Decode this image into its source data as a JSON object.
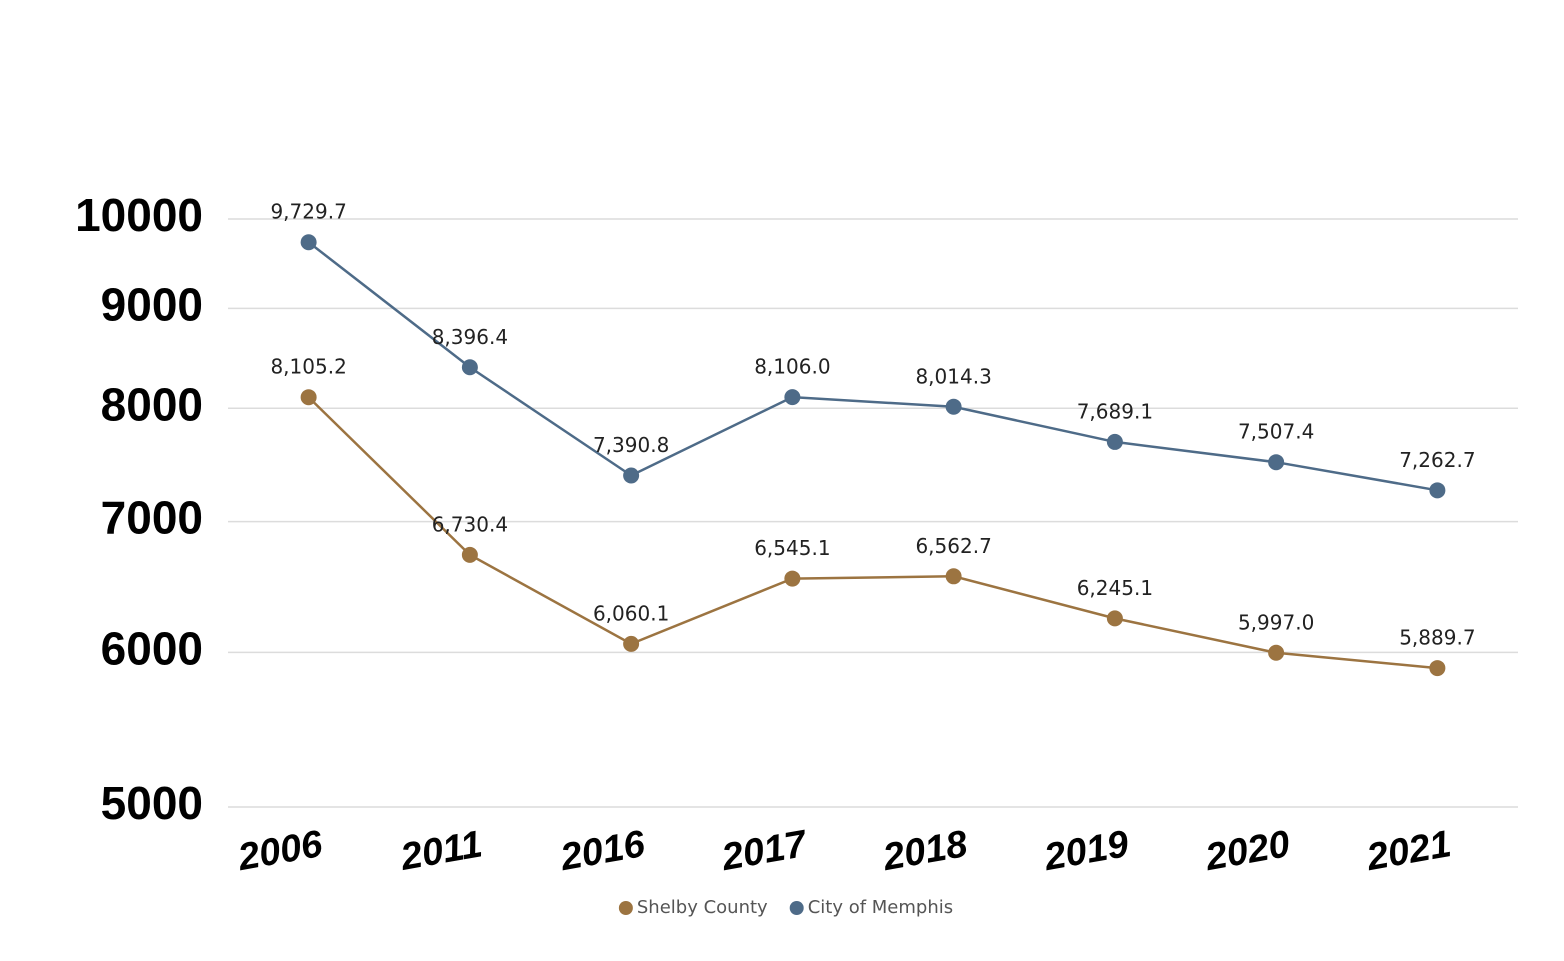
{
  "chart_data": {
    "type": "line",
    "categories": [
      "2006",
      "2011",
      "2016",
      "2017",
      "2018",
      "2019",
      "2020",
      "2021"
    ],
    "series": [
      {
        "name": "Shelby County",
        "color": "#9c7441",
        "values": [
          8105.2,
          6730.4,
          6060.1,
          6545.1,
          6562.7,
          6245.1,
          5997.0,
          5889.7
        ],
        "value_labels": [
          "8,105.2",
          "6,730.4",
          "6,060.1",
          "6,545.1",
          "6,562.7",
          "6,245.1",
          "5,997.0",
          "5,889.7"
        ]
      },
      {
        "name": "City of Memphis",
        "color": "#4e6b88",
        "values": [
          9729.7,
          8396.4,
          7390.8,
          8106.0,
          8014.3,
          7689.1,
          7507.4,
          7262.7
        ],
        "value_labels": [
          "9,729.7",
          "8,396.4",
          "7,390.8",
          "8,106.0",
          "8,014.3",
          "7,689.1",
          "7,507.4",
          "7,262.7"
        ]
      }
    ],
    "ylim": [
      5000,
      10000
    ],
    "yticks": [
      5000,
      6000,
      7000,
      8000,
      9000,
      10000
    ],
    "log_scale": true,
    "grid": true,
    "legend": "bottom"
  }
}
